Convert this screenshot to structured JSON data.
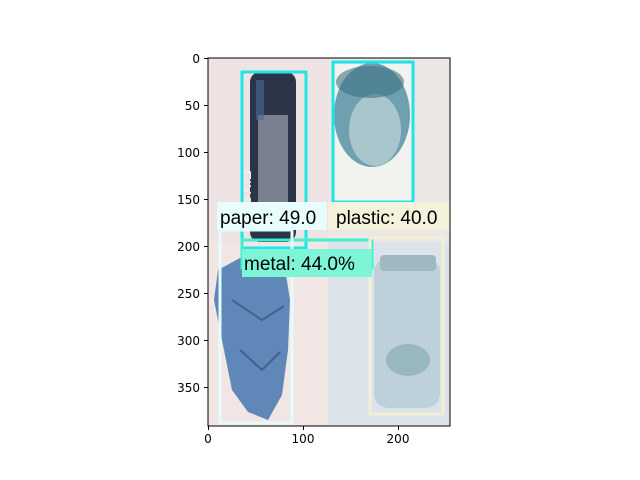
{
  "figure": {
    "xticks": [
      "0",
      "100",
      "200"
    ],
    "yticks": [
      "0",
      "50",
      "100",
      "150",
      "200",
      "250",
      "300",
      "350"
    ],
    "x_extent": [
      0,
      255
    ],
    "y_extent": [
      392,
      0
    ]
  },
  "detections": [
    {
      "text": "paper: 49.0",
      "class": "paper",
      "score": 49.0,
      "label_bg": "#e8fefe",
      "box_color": "#e4fbfb"
    },
    {
      "text": "plastic: 40.0",
      "class": "plastic",
      "score": 40.0,
      "label_bg": "#f4f2dc",
      "box_color": "#f2efd6"
    },
    {
      "text": "metal: 44.0%",
      "class": "metal",
      "score": 44.0,
      "label_bg": "#7ef5d7",
      "box_color": "#3ef0ce"
    },
    {
      "class": "bottle",
      "box_color": "#1fe6e6"
    },
    {
      "class": "cup",
      "box_color": "#1fe6e6"
    }
  ],
  "colors": {
    "axis": "#000000",
    "bg_top_left": "#efe2e2",
    "bg_top_right": "#ece7e4",
    "bg_bottom_left": "#f2e6e4",
    "bg_bottom_right": "#dde3ea",
    "paper_blue": "#5f88b8",
    "can_dark": "#2c3548",
    "cup_teal": "#6fa0b0",
    "jar_glass": "#b8cdd6"
  }
}
